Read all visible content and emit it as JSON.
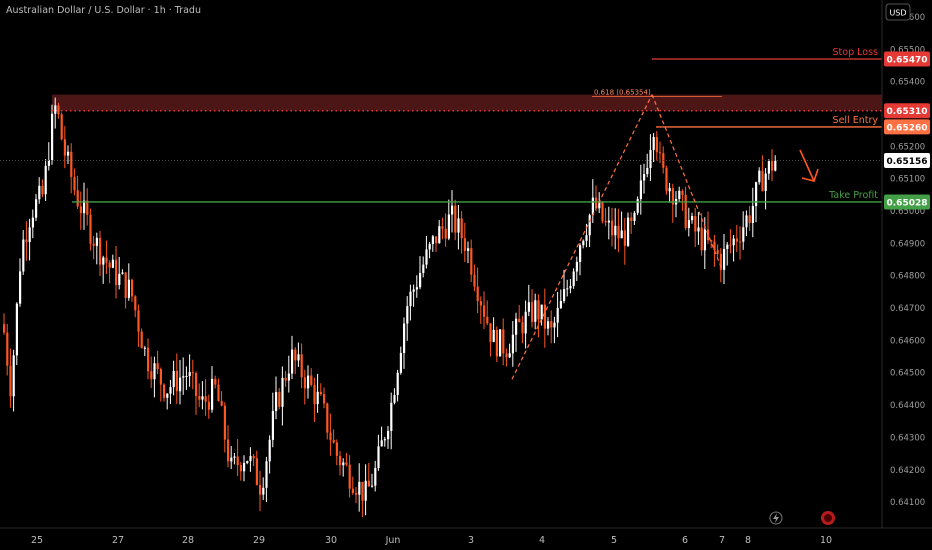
{
  "header": {
    "title": "Australian Dollar / U.S. Dollar · 1h · Tradu",
    "currency_button": "USD"
  },
  "chart_data": {
    "type": "candlestick",
    "symbol": "AUDUSD",
    "timeframe": "1h",
    "ylim": [
      0.6402,
      0.6564
    ],
    "y_ticks": [
      "0.65600",
      "0.65500",
      "0.65400",
      "0.65200",
      "0.65100",
      "0.65000",
      "0.64900",
      "0.64800",
      "0.64700",
      "0.64600",
      "0.64500",
      "0.64400",
      "0.64300",
      "0.64200",
      "0.64100"
    ],
    "x_ticks": [
      "25",
      "27",
      "28",
      "29",
      "30",
      "Jun",
      "3",
      "4",
      "5",
      "6",
      "7",
      "8",
      "10"
    ],
    "levels": [
      {
        "label": "Stop Loss",
        "value": "0.65470",
        "color": "#e53935",
        "style": "solid"
      },
      {
        "label": "",
        "value": "0.65310",
        "color": "#e53935",
        "style": "dotted"
      },
      {
        "label": "Sell Entry",
        "value": "0.65260",
        "color": "#ff7043",
        "style": "solid"
      },
      {
        "label": "Take Profit",
        "value": "0.65028",
        "color": "#43a047",
        "style": "solid"
      }
    ],
    "current_price": "0.65156",
    "fib_label": "0.618 (0.65354)",
    "resistance_zone": [
      0.6531,
      0.6536
    ],
    "candles_summary": {
      "start": 0.6465,
      "swing_high": 0.6533,
      "low_1": 0.6413,
      "low_2": 0.641,
      "swing_low_jun3": 0.645,
      "peak_jun5": 0.6535,
      "low_jun6": 0.6482,
      "last": 0.6516
    }
  },
  "colors": {
    "up": "#ffffff",
    "down": "#ff5722",
    "stop": "#e53935",
    "entry": "#ff7043",
    "tp": "#43a047",
    "zone": "#5a1a1a"
  }
}
